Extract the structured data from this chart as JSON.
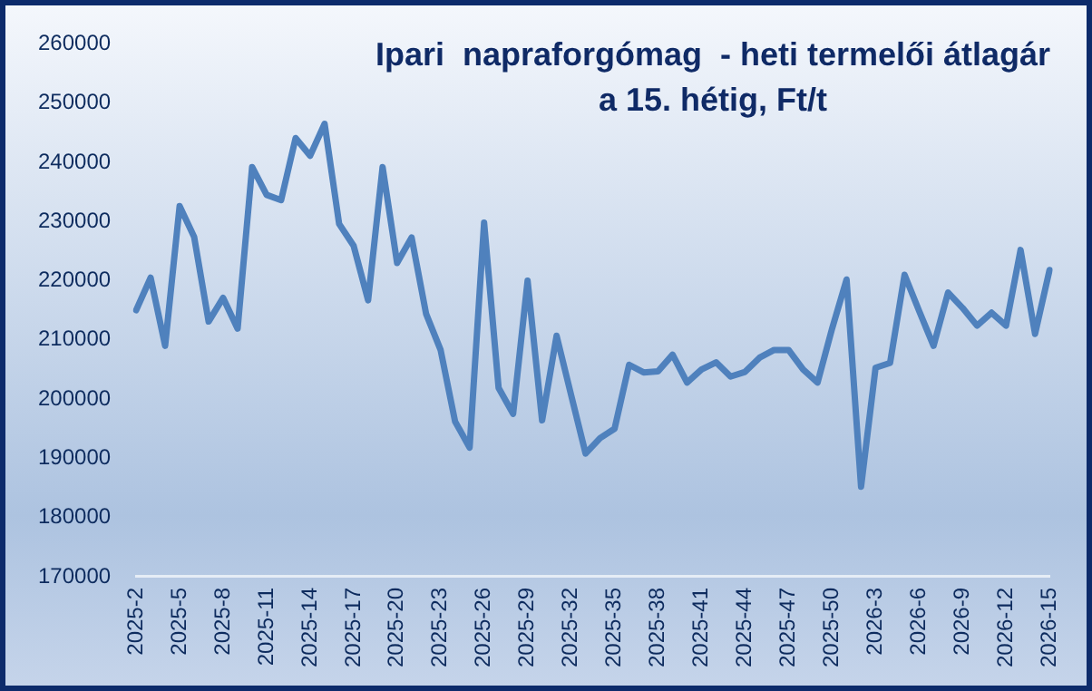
{
  "chart_data": {
    "type": "line",
    "title": "Ipari  napraforgómag  - heti termelői átlagár\na 15. hétig, Ft/t",
    "categories": [
      "2025-2",
      null,
      null,
      "2025-5",
      null,
      null,
      "2025-8",
      null,
      null,
      "2025-11",
      null,
      null,
      "2025-14",
      null,
      null,
      "2025-17",
      null,
      null,
      "2025-20",
      null,
      null,
      "2025-23",
      null,
      null,
      "2025-26",
      null,
      null,
      "2025-29",
      null,
      null,
      "2025-32",
      null,
      null,
      "2025-35",
      null,
      null,
      "2025-38",
      null,
      null,
      "2025-41",
      null,
      null,
      "2025-44",
      null,
      null,
      "2025-47",
      null,
      null,
      "2025-50",
      null,
      null,
      "2026-3",
      null,
      null,
      "2026-6",
      null,
      null,
      "2026-9",
      null,
      null,
      "2026-12",
      null,
      null,
      "2026-15"
    ],
    "series": [
      {
        "color": "#4f81bd",
        "values": [
          215000,
          220500,
          209000,
          232600,
          227400,
          213100,
          217100,
          211900,
          239200,
          234500,
          233600,
          244100,
          241100,
          246500,
          229600,
          225900,
          216700,
          239200,
          223000,
          227300,
          214400,
          208300,
          196200,
          191800,
          229800,
          201900,
          197500,
          220000,
          196400,
          210700,
          200700,
          190800,
          193400,
          195000,
          205800,
          204500,
          204700,
          207500,
          202800,
          205000,
          206200,
          203800,
          204600,
          207000,
          208300,
          208300,
          205000,
          202800,
          211900,
          220200,
          185200,
          205300,
          206100,
          221000,
          214900,
          209000,
          218000,
          215400,
          212400,
          214600,
          212400,
          225200,
          211000,
          221800
        ]
      }
    ],
    "ylim": [
      170000,
      260000
    ],
    "yticks": [
      170000,
      180000,
      190000,
      200000,
      210000,
      220000,
      230000,
      240000,
      250000,
      260000
    ],
    "grid": false,
    "legend": false,
    "marker": "none",
    "line_style": "solid"
  }
}
